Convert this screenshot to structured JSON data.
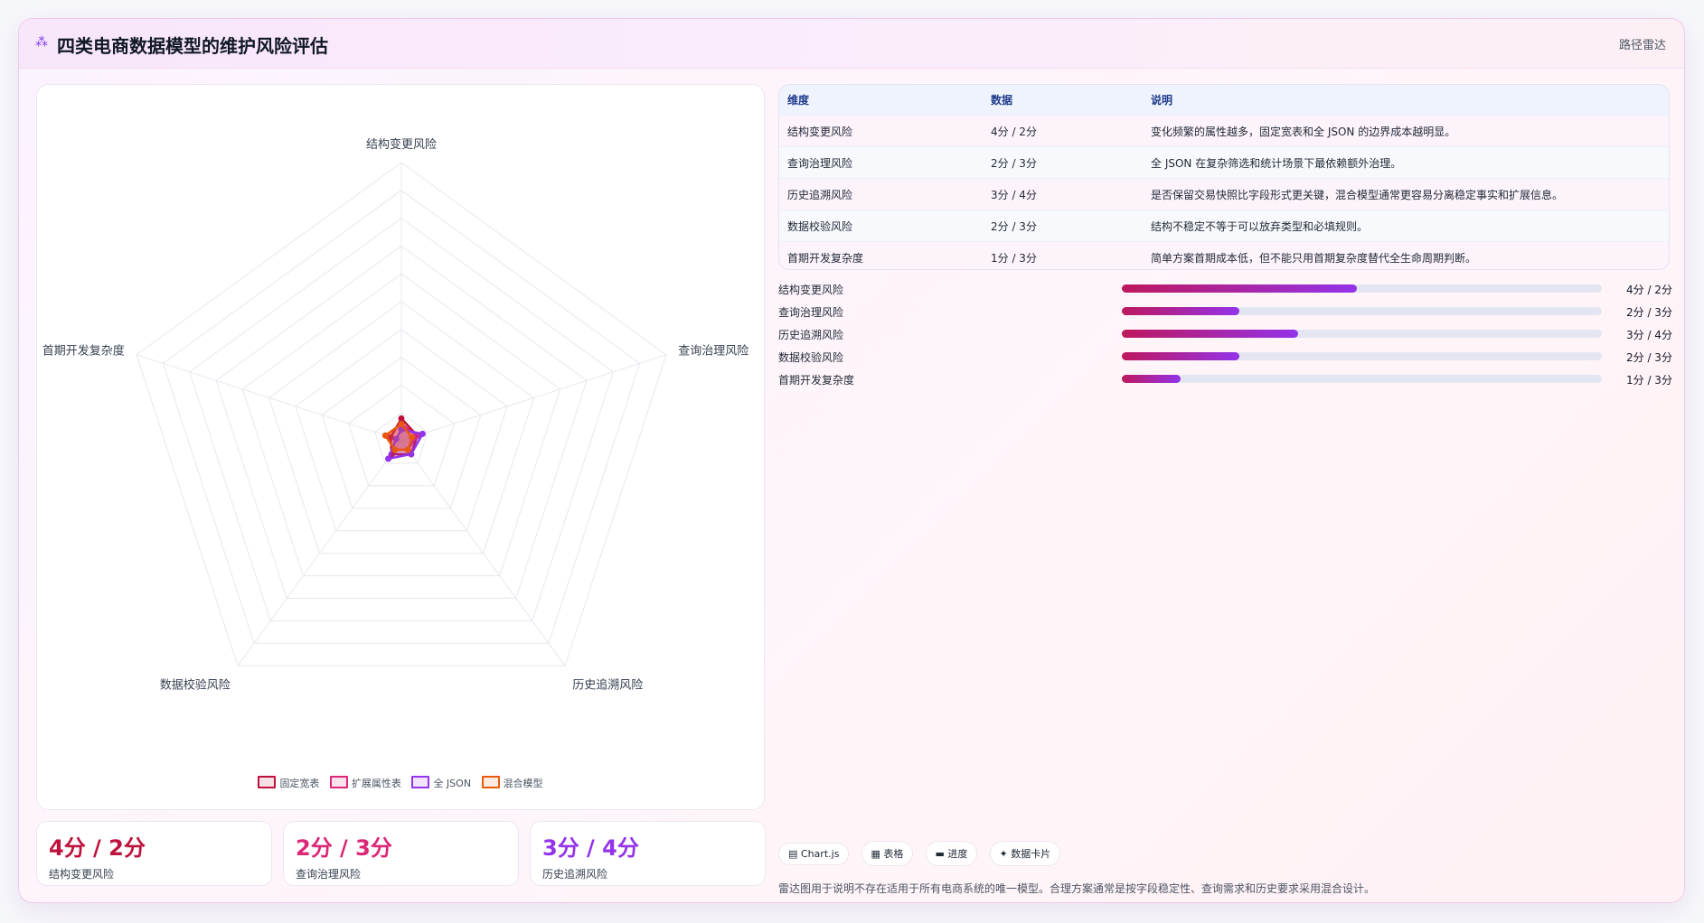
{
  "header": {
    "logo_icon": "sparkle-icon",
    "logo_glyph": "⁂",
    "title": "四类电商数据模型的维护风险评估",
    "tag": "路径雷达"
  },
  "chart_data": {
    "type": "radar",
    "axes": [
      "结构变更风险",
      "查询治理风险",
      "历史追溯风险",
      "数据校验风险",
      "首期开发复杂度"
    ],
    "rings": 10,
    "scale_max": 50,
    "series": [
      {
        "name": "固定宽表",
        "color": "#be123c",
        "values": [
          4,
          3,
          3,
          3,
          2
        ]
      },
      {
        "name": "扩展属性表",
        "color": "#db2777",
        "values": [
          3,
          3,
          2,
          2,
          3
        ]
      },
      {
        "name": "全 JSON",
        "color": "#9333ea",
        "values": [
          2,
          4,
          3,
          4,
          1
        ]
      },
      {
        "name": "混合模型",
        "color": "#ea580c",
        "values": [
          3,
          2,
          2,
          2,
          3
        ]
      }
    ]
  },
  "legend": [
    {
      "label": "固定宽表",
      "color": "#be123c"
    },
    {
      "label": "扩展属性表",
      "color": "#db2777"
    },
    {
      "label": "全 JSON",
      "color": "#9333ea"
    },
    {
      "label": "混合模型",
      "color": "#ea580c"
    }
  ],
  "kpis": [
    {
      "value": "4分 / 2分",
      "label": "结构变更风险",
      "color": "#be123c"
    },
    {
      "value": "2分 / 3分",
      "label": "查询治理风险",
      "color": "#db2777"
    },
    {
      "value": "3分 / 4分",
      "label": "历史追溯风险",
      "color": "#9333ea"
    }
  ],
  "table": {
    "headers": [
      "维度",
      "数据",
      "说明"
    ],
    "rows": [
      [
        "结构变更风险",
        "4分 / 2分",
        "变化频繁的属性越多，固定宽表和全 JSON 的边界成本越明显。"
      ],
      [
        "查询治理风险",
        "2分 / 3分",
        "全 JSON 在复杂筛选和统计场景下最依赖额外治理。"
      ],
      [
        "历史追溯风险",
        "3分 / 4分",
        "是否保留交易快照比字段形式更关键，混合模型通常更容易分离稳定事实和扩展信息。"
      ],
      [
        "数据校验风险",
        "2分 / 3分",
        "结构不稳定不等于可以放弃类型和必填规则。"
      ],
      [
        "首期开发复杂度",
        "1分 / 3分",
        "简单方案首期成本低，但不能只用首期复杂度替代全生命周期判断。"
      ]
    ]
  },
  "bars": [
    {
      "label": "结构变更风险",
      "value": "4分 / 2分",
      "fraction": 0.49
    },
    {
      "label": "查询治理风险",
      "value": "2分 / 3分",
      "fraction": 0.245
    },
    {
      "label": "历史追溯风险",
      "value": "3分 / 4分",
      "fraction": 0.367
    },
    {
      "label": "数据校验风险",
      "value": "2分 / 3分",
      "fraction": 0.245
    },
    {
      "label": "首期开发复杂度",
      "value": "1分 / 3分",
      "fraction": 0.123
    }
  ],
  "chips": [
    {
      "icon": "chart-icon",
      "glyph": "▤",
      "label": "Chart.js"
    },
    {
      "icon": "table-icon",
      "glyph": "▦",
      "label": "表格"
    },
    {
      "icon": "progress-icon",
      "glyph": "▬",
      "label": "进度"
    },
    {
      "icon": "card-icon",
      "glyph": "✦",
      "label": "数据卡片"
    }
  ],
  "note": "雷达图用于说明不存在适用于所有电商系统的唯一模型。合理方案通常是按字段稳定性、查询需求和历史要求采用混合设计。"
}
